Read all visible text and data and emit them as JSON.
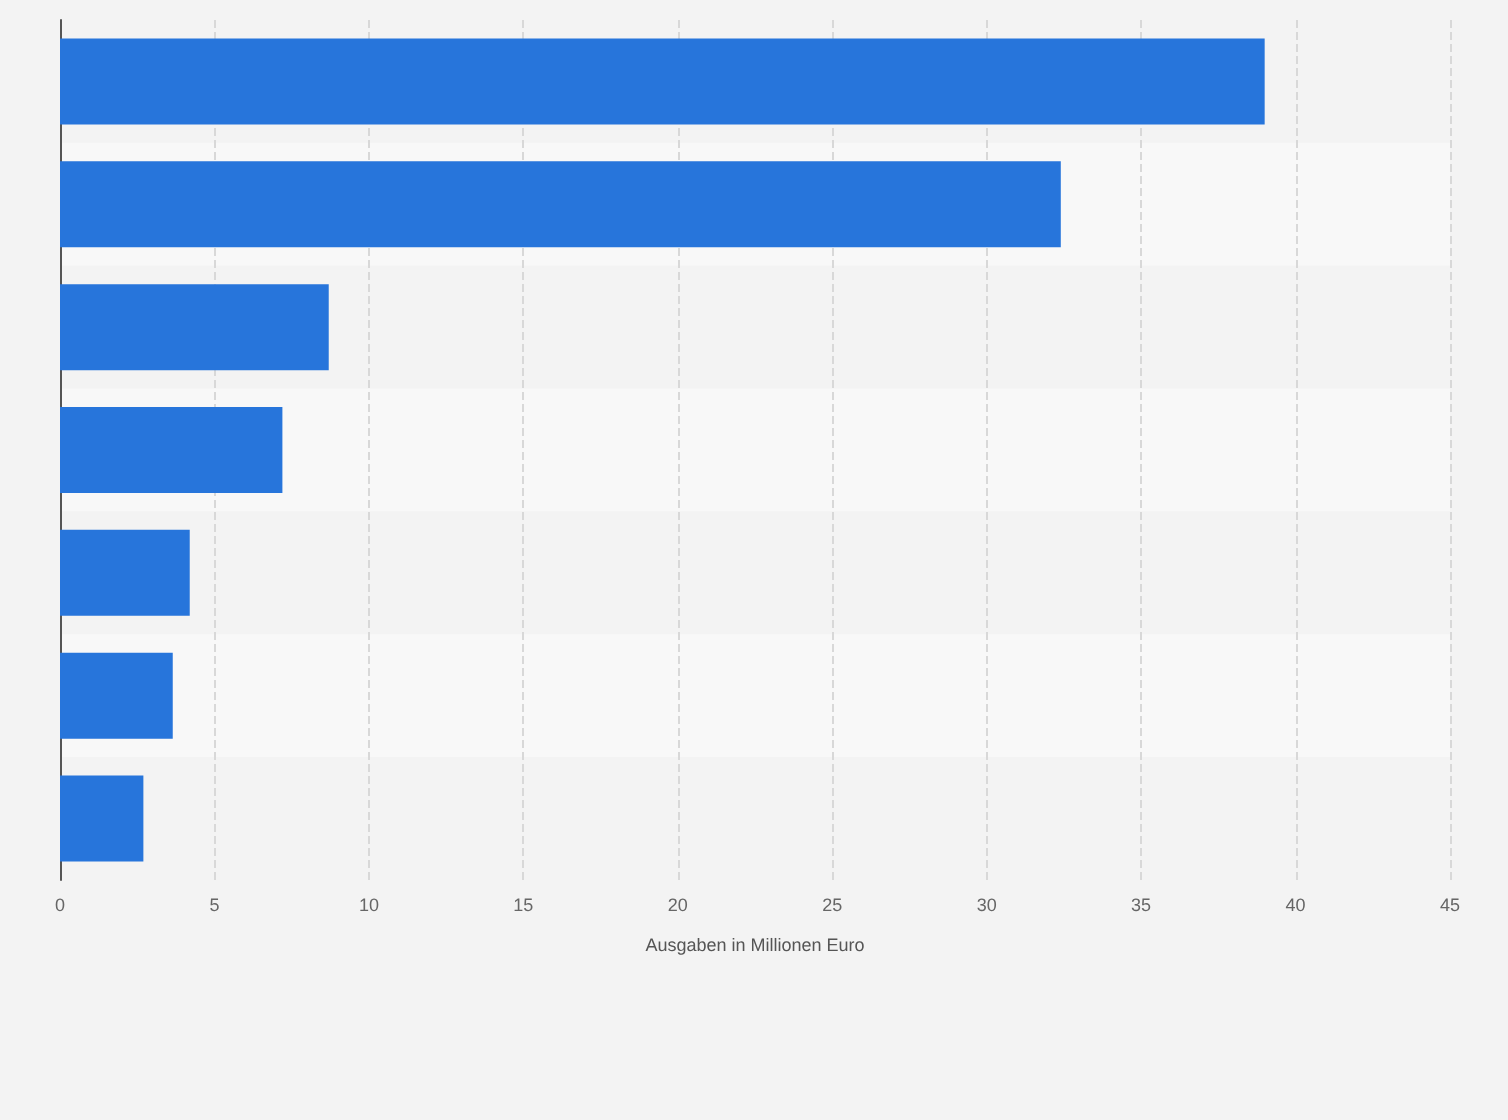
{
  "chart_data": {
    "type": "bar",
    "orientation": "horizontal",
    "xlabel": "Ausgaben in Millionen Euro",
    "categories": [
      null,
      null,
      null,
      null,
      null,
      null,
      null
    ],
    "values": [
      39.0,
      32.4,
      8.7,
      7.2,
      4.2,
      3.65,
      2.7
    ],
    "color": "#2775db",
    "xlim": [
      0,
      45
    ],
    "xticks": [
      0,
      5,
      10,
      15,
      20,
      25,
      30,
      35,
      40,
      45
    ],
    "grid": "x"
  }
}
